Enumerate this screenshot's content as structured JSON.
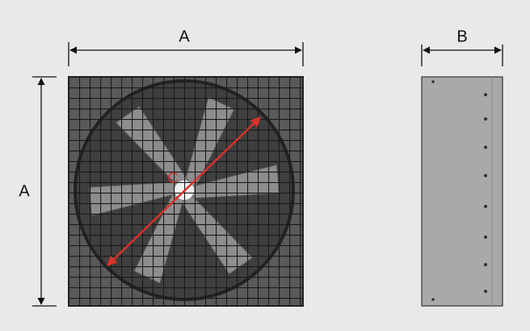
{
  "front_view": {
    "width_label": "A",
    "height_label": "A",
    "diameter_label": "C"
  },
  "side_view": {
    "depth_label": "B"
  }
}
